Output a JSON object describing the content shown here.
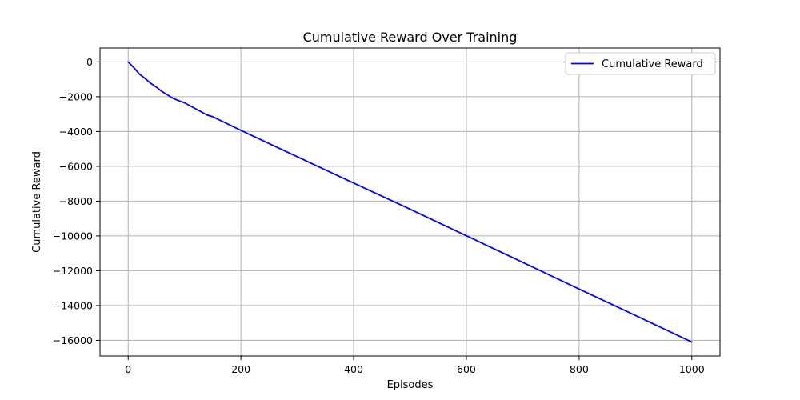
{
  "chart_data": {
    "type": "line",
    "title": "Cumulative Reward Over Training",
    "xlabel": "Episodes",
    "ylabel": "Cumulative Reward",
    "xlim": [
      -50,
      1050
    ],
    "ylim": [
      -16900,
      800
    ],
    "x_ticks": [
      0,
      200,
      400,
      600,
      800,
      1000
    ],
    "y_ticks": [
      0,
      -2000,
      -4000,
      -6000,
      -8000,
      -10000,
      -12000,
      -14000,
      -16000
    ],
    "x_tick_labels": [
      "0",
      "200",
      "400",
      "600",
      "800",
      "1000"
    ],
    "y_tick_labels": [
      "0",
      "−2000",
      "−4000",
      "−6000",
      "−8000",
      "−10000",
      "−12000",
      "−14000",
      "−16000"
    ],
    "grid": true,
    "legend_position": "top-right",
    "series": [
      {
        "name": "Cumulative Reward",
        "color": "#0000ff",
        "x": [
          0,
          10,
          20,
          30,
          40,
          50,
          60,
          70,
          80,
          90,
          100,
          120,
          140,
          150,
          200,
          300,
          400,
          500,
          600,
          700,
          800,
          900,
          1000
        ],
        "y": [
          0,
          -330,
          -700,
          -950,
          -1230,
          -1450,
          -1700,
          -1900,
          -2100,
          -2230,
          -2350,
          -2700,
          -3050,
          -3150,
          -3930,
          -5450,
          -6960,
          -8460,
          -9990,
          -11520,
          -13050,
          -14570,
          -16100
        ]
      }
    ]
  }
}
